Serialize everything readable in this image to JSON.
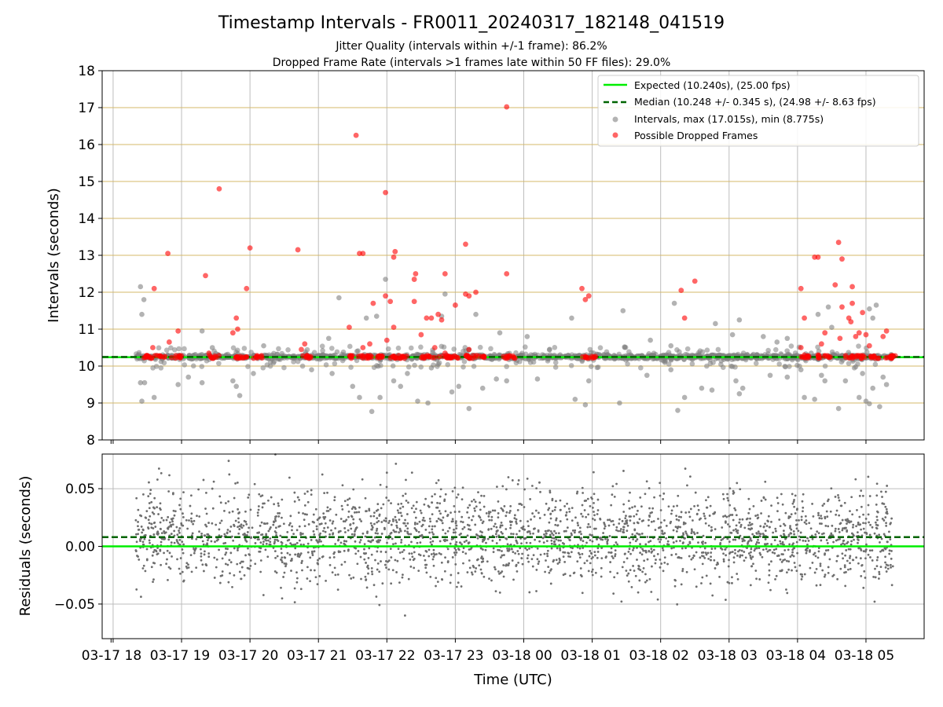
{
  "colors": {
    "expected": "#00ee00",
    "median": "#006400",
    "interval_points": "#808080",
    "dropped_points": "#ff0000",
    "hgrid_top": "#d4b86a",
    "vgrid": "#bdbdbd",
    "residual_points": "#6e6e6e"
  },
  "chart_data": [
    {
      "type": "scatter",
      "title": "Timestamp Intervals - FR0011_20240317_182148_041519",
      "subtitle_1": "Jitter Quality (intervals within +/-1 frame): 86.2%",
      "subtitle_2": "Dropped Frame Rate (intervals >1 frames late within 50 FF files): 29.0%",
      "ylabel": "Intervals (seconds)",
      "ylim": [
        8,
        18
      ],
      "yticks": [
        "8",
        "9",
        "10",
        "11",
        "12",
        "13",
        "14",
        "15",
        "16",
        "17",
        "18"
      ],
      "xlim_hours": [
        17.84,
        29.85
      ],
      "x_tick_hours": [
        18,
        19,
        20,
        21,
        22,
        23,
        24,
        25,
        26,
        27,
        28,
        29
      ],
      "grid": true,
      "legend_position": "top-right",
      "legend": [
        "Expected (10.240s), (25.00 fps)",
        "Median (10.248 +/- 0.345 s), (24.98 +/- 8.63 fps)",
        "Intervals, max (17.015s), min (8.775s)",
        "Possible Dropped Frames"
      ],
      "expected": 10.24,
      "median": 10.248,
      "data_span_hours": [
        18.33,
        29.41
      ],
      "intervals_outliers": [
        {
          "x": 18.4,
          "y": 12.15
        },
        {
          "x": 18.45,
          "y": 11.8
        },
        {
          "x": 18.42,
          "y": 11.4
        },
        {
          "x": 18.4,
          "y": 9.55
        },
        {
          "x": 18.46,
          "y": 9.55
        },
        {
          "x": 18.42,
          "y": 9.05
        },
        {
          "x": 18.6,
          "y": 9.15
        },
        {
          "x": 18.95,
          "y": 9.5
        },
        {
          "x": 19.1,
          "y": 9.7
        },
        {
          "x": 19.3,
          "y": 10.95
        },
        {
          "x": 19.45,
          "y": 10.5
        },
        {
          "x": 19.3,
          "y": 9.55
        },
        {
          "x": 19.75,
          "y": 9.6
        },
        {
          "x": 19.8,
          "y": 9.45
        },
        {
          "x": 19.85,
          "y": 9.2
        },
        {
          "x": 20.2,
          "y": 10.55
        },
        {
          "x": 20.05,
          "y": 9.8
        },
        {
          "x": 20.9,
          "y": 9.9
        },
        {
          "x": 21.15,
          "y": 10.75
        },
        {
          "x": 21.3,
          "y": 11.85
        },
        {
          "x": 21.2,
          "y": 9.8
        },
        {
          "x": 21.5,
          "y": 9.45
        },
        {
          "x": 21.6,
          "y": 9.15
        },
        {
          "x": 21.7,
          "y": 11.3
        },
        {
          "x": 21.78,
          "y": 8.77
        },
        {
          "x": 21.85,
          "y": 11.35
        },
        {
          "x": 21.9,
          "y": 9.15
        },
        {
          "x": 21.98,
          "y": 12.35
        },
        {
          "x": 22.1,
          "y": 9.6
        },
        {
          "x": 22.2,
          "y": 9.45
        },
        {
          "x": 22.3,
          "y": 9.8
        },
        {
          "x": 22.45,
          "y": 9.05
        },
        {
          "x": 22.6,
          "y": 9.0
        },
        {
          "x": 22.65,
          "y": 9.95
        },
        {
          "x": 22.8,
          "y": 11.35
        },
        {
          "x": 22.85,
          "y": 11.95
        },
        {
          "x": 22.95,
          "y": 9.3
        },
        {
          "x": 23.05,
          "y": 9.45
        },
        {
          "x": 22.75,
          "y": 10.05
        },
        {
          "x": 23.2,
          "y": 8.85
        },
        {
          "x": 23.3,
          "y": 11.4
        },
        {
          "x": 23.4,
          "y": 9.4
        },
        {
          "x": 23.6,
          "y": 9.65
        },
        {
          "x": 23.65,
          "y": 10.9
        },
        {
          "x": 23.75,
          "y": 9.6
        },
        {
          "x": 24.05,
          "y": 10.8
        },
        {
          "x": 24.2,
          "y": 9.65
        },
        {
          "x": 24.7,
          "y": 11.3
        },
        {
          "x": 24.75,
          "y": 9.1
        },
        {
          "x": 24.9,
          "y": 8.95
        },
        {
          "x": 24.95,
          "y": 9.6
        },
        {
          "x": 25.4,
          "y": 9.0
        },
        {
          "x": 25.45,
          "y": 11.5
        },
        {
          "x": 25.85,
          "y": 10.7
        },
        {
          "x": 25.8,
          "y": 9.75
        },
        {
          "x": 26.15,
          "y": 10.55
        },
        {
          "x": 26.15,
          "y": 9.9
        },
        {
          "x": 26.2,
          "y": 11.7
        },
        {
          "x": 26.25,
          "y": 8.8
        },
        {
          "x": 26.35,
          "y": 9.15
        },
        {
          "x": 26.6,
          "y": 9.4
        },
        {
          "x": 26.75,
          "y": 9.35
        },
        {
          "x": 26.8,
          "y": 11.15
        },
        {
          "x": 27.05,
          "y": 10.85
        },
        {
          "x": 27.1,
          "y": 9.6
        },
        {
          "x": 27.15,
          "y": 11.25
        },
        {
          "x": 27.2,
          "y": 9.4
        },
        {
          "x": 27.15,
          "y": 9.25
        },
        {
          "x": 27.4,
          "y": 10.3
        },
        {
          "x": 27.5,
          "y": 10.8
        },
        {
          "x": 27.7,
          "y": 10.65
        },
        {
          "x": 27.85,
          "y": 10.75
        },
        {
          "x": 27.6,
          "y": 9.75
        },
        {
          "x": 27.85,
          "y": 9.7
        },
        {
          "x": 28.05,
          "y": 9.9
        },
        {
          "x": 28.1,
          "y": 9.15
        },
        {
          "x": 28.25,
          "y": 9.1
        },
        {
          "x": 28.2,
          "y": 10.35
        },
        {
          "x": 28.35,
          "y": 9.75
        },
        {
          "x": 28.4,
          "y": 9.6
        },
        {
          "x": 28.6,
          "y": 8.85
        },
        {
          "x": 28.7,
          "y": 9.6
        },
        {
          "x": 28.9,
          "y": 9.15
        },
        {
          "x": 28.95,
          "y": 9.8
        },
        {
          "x": 29.0,
          "y": 9.05
        },
        {
          "x": 29.05,
          "y": 8.98
        },
        {
          "x": 29.1,
          "y": 9.4
        },
        {
          "x": 29.1,
          "y": 11.3
        },
        {
          "x": 29.15,
          "y": 11.65
        },
        {
          "x": 29.2,
          "y": 8.9
        },
        {
          "x": 29.25,
          "y": 9.7
        },
        {
          "x": 29.3,
          "y": 9.5
        },
        {
          "x": 28.3,
          "y": 11.4
        },
        {
          "x": 28.5,
          "y": 11.05
        },
        {
          "x": 28.45,
          "y": 11.6
        },
        {
          "x": 29.05,
          "y": 11.55
        }
      ],
      "dropped_frames": [
        {
          "x": 18.6,
          "y": 12.1
        },
        {
          "x": 18.8,
          "y": 13.05
        },
        {
          "x": 18.82,
          "y": 10.65
        },
        {
          "x": 18.95,
          "y": 10.95
        },
        {
          "x": 18.58,
          "y": 10.5
        },
        {
          "x": 19.35,
          "y": 12.45
        },
        {
          "x": 19.4,
          "y": 10.35
        },
        {
          "x": 19.55,
          "y": 14.8
        },
        {
          "x": 19.8,
          "y": 11.3
        },
        {
          "x": 19.75,
          "y": 10.9
        },
        {
          "x": 19.82,
          "y": 11.0
        },
        {
          "x": 19.95,
          "y": 10.25
        },
        {
          "x": 19.95,
          "y": 12.1
        },
        {
          "x": 20.0,
          "y": 13.2
        },
        {
          "x": 20.7,
          "y": 13.15
        },
        {
          "x": 20.75,
          "y": 10.45
        },
        {
          "x": 20.8,
          "y": 10.6
        },
        {
          "x": 21.45,
          "y": 11.05
        },
        {
          "x": 21.6,
          "y": 13.05
        },
        {
          "x": 21.65,
          "y": 13.05
        },
        {
          "x": 21.55,
          "y": 16.25
        },
        {
          "x": 21.8,
          "y": 11.7
        },
        {
          "x": 21.75,
          "y": 10.6
        },
        {
          "x": 21.65,
          "y": 10.5
        },
        {
          "x": 21.98,
          "y": 11.9
        },
        {
          "x": 21.98,
          "y": 14.7
        },
        {
          "x": 22.05,
          "y": 11.75
        },
        {
          "x": 22.0,
          "y": 10.7
        },
        {
          "x": 22.1,
          "y": 12.95
        },
        {
          "x": 22.12,
          "y": 13.1
        },
        {
          "x": 22.1,
          "y": 11.05
        },
        {
          "x": 22.4,
          "y": 12.35
        },
        {
          "x": 22.42,
          "y": 12.5
        },
        {
          "x": 22.4,
          "y": 11.75
        },
        {
          "x": 22.5,
          "y": 10.85
        },
        {
          "x": 22.58,
          "y": 11.3
        },
        {
          "x": 22.65,
          "y": 11.3
        },
        {
          "x": 22.7,
          "y": 10.5
        },
        {
          "x": 22.75,
          "y": 11.4
        },
        {
          "x": 22.8,
          "y": 11.25
        },
        {
          "x": 22.85,
          "y": 12.5
        },
        {
          "x": 22.85,
          "y": 10.35
        },
        {
          "x": 23.0,
          "y": 11.65
        },
        {
          "x": 23.15,
          "y": 11.95
        },
        {
          "x": 23.2,
          "y": 11.9
        },
        {
          "x": 23.15,
          "y": 13.3
        },
        {
          "x": 23.2,
          "y": 10.45
        },
        {
          "x": 23.3,
          "y": 12.0
        },
        {
          "x": 23.75,
          "y": 17.02
        },
        {
          "x": 23.75,
          "y": 12.5
        },
        {
          "x": 24.85,
          "y": 12.1
        },
        {
          "x": 24.9,
          "y": 11.8
        },
        {
          "x": 24.95,
          "y": 11.9
        },
        {
          "x": 26.3,
          "y": 12.05
        },
        {
          "x": 26.35,
          "y": 11.3
        },
        {
          "x": 26.5,
          "y": 12.3
        },
        {
          "x": 28.05,
          "y": 12.1
        },
        {
          "x": 28.1,
          "y": 11.3
        },
        {
          "x": 28.05,
          "y": 10.5
        },
        {
          "x": 28.1,
          "y": 10.3
        },
        {
          "x": 28.25,
          "y": 12.95
        },
        {
          "x": 28.3,
          "y": 12.95
        },
        {
          "x": 28.35,
          "y": 10.6
        },
        {
          "x": 28.4,
          "y": 10.9
        },
        {
          "x": 28.3,
          "y": 10.3
        },
        {
          "x": 28.55,
          "y": 12.2
        },
        {
          "x": 28.6,
          "y": 13.35
        },
        {
          "x": 28.62,
          "y": 10.75
        },
        {
          "x": 28.65,
          "y": 11.6
        },
        {
          "x": 28.65,
          "y": 12.9
        },
        {
          "x": 28.75,
          "y": 11.3
        },
        {
          "x": 28.78,
          "y": 11.2
        },
        {
          "x": 28.8,
          "y": 12.15
        },
        {
          "x": 28.8,
          "y": 11.7
        },
        {
          "x": 28.85,
          "y": 10.8
        },
        {
          "x": 28.9,
          "y": 10.9
        },
        {
          "x": 28.95,
          "y": 11.45
        },
        {
          "x": 29.0,
          "y": 10.85
        },
        {
          "x": 29.05,
          "y": 10.55
        },
        {
          "x": 29.25,
          "y": 10.8
        },
        {
          "x": 29.3,
          "y": 10.95
        },
        {
          "x": 29.35,
          "y": 10.25
        }
      ],
      "dropped_clusters": [
        [
          18.45,
          18.8
        ],
        [
          18.85,
          19.0
        ],
        [
          19.4,
          19.55
        ],
        [
          19.75,
          19.95
        ],
        [
          20.05,
          20.2
        ],
        [
          20.75,
          20.9
        ],
        [
          21.45,
          21.95
        ],
        [
          22.0,
          22.3
        ],
        [
          22.5,
          22.7
        ],
        [
          22.75,
          23.05
        ],
        [
          23.15,
          23.45
        ],
        [
          23.7,
          23.9
        ],
        [
          24.85,
          25.05
        ],
        [
          28.05,
          28.2
        ],
        [
          28.3,
          28.5
        ],
        [
          28.7,
          29.0
        ],
        [
          29.05,
          29.2
        ],
        [
          29.25,
          29.45
        ]
      ]
    },
    {
      "type": "scatter",
      "ylabel": "Residuals (seconds)",
      "xlabel": "Time (UTC)",
      "ylim": [
        -0.08,
        0.08
      ],
      "yticks": [
        "0.05",
        "0.00",
        "−0.05"
      ],
      "ytick_values": [
        0.05,
        0.0,
        -0.05
      ],
      "x_tick_labels": [
        "03-17 18",
        "03-17 19",
        "03-17 20",
        "03-17 21",
        "03-17 22",
        "03-17 23",
        "03-18 00",
        "03-18 01",
        "03-18 02",
        "03-18 03",
        "03-18 04",
        "03-18 05"
      ],
      "expected_residual": 0.0,
      "median_residual": 0.008,
      "residual_spread_sd": 0.02,
      "grid": true
    }
  ]
}
